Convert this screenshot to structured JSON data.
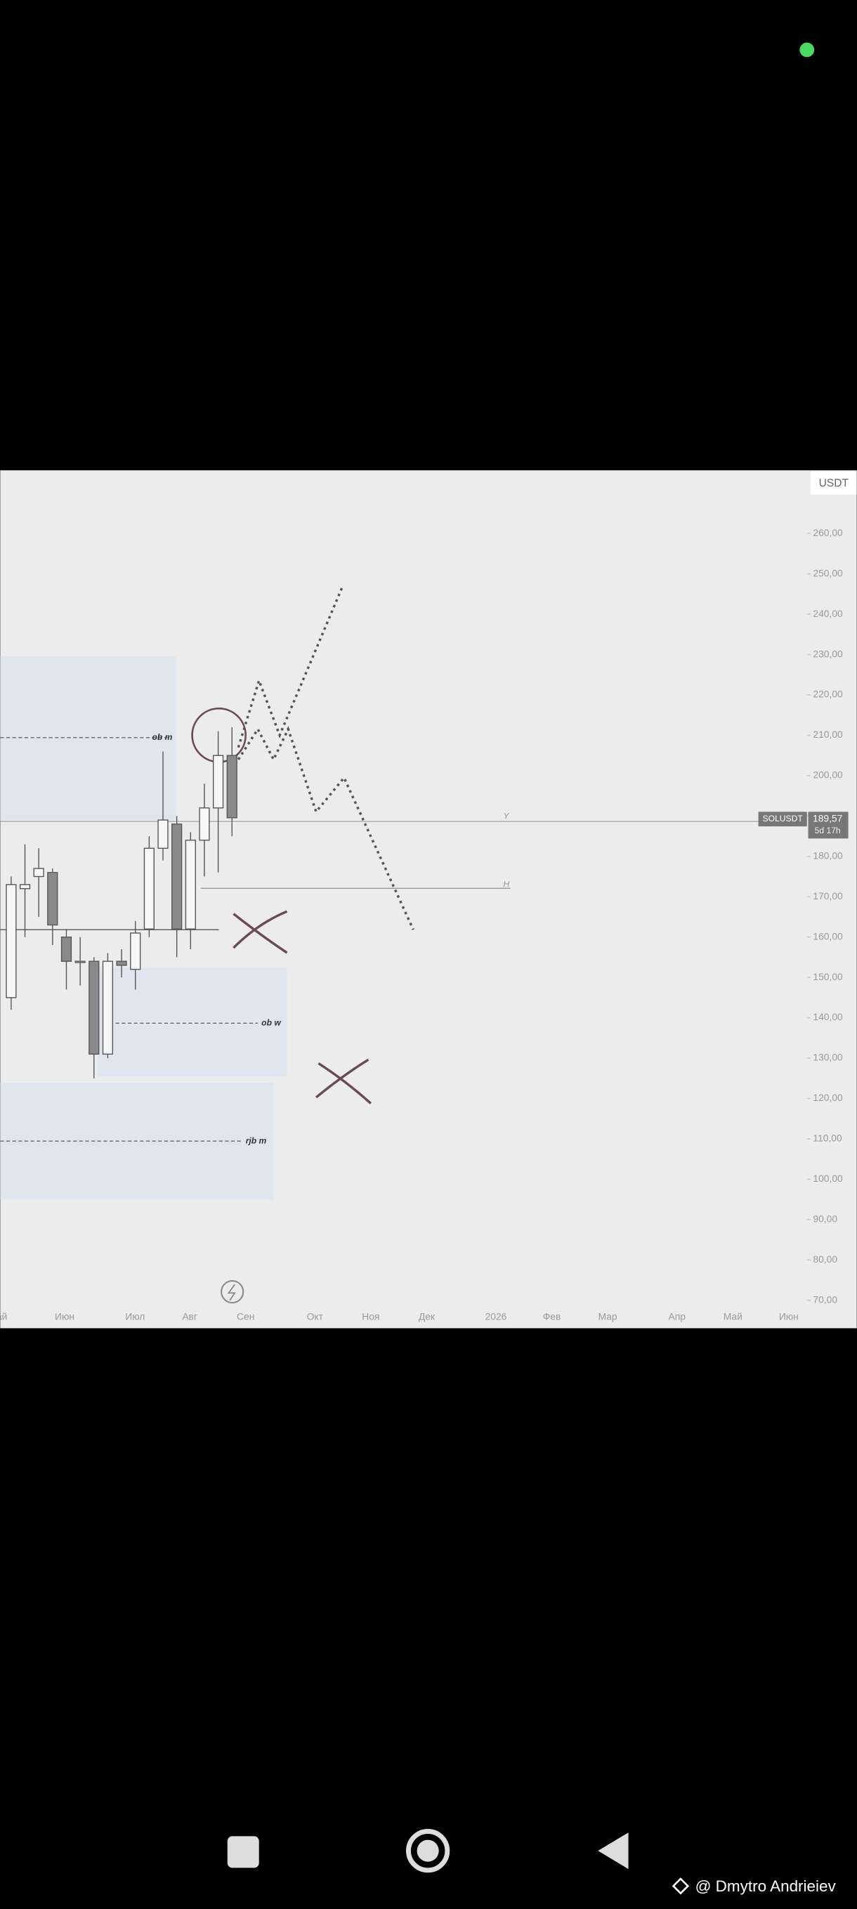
{
  "chart_data": {
    "type": "candlestick",
    "symbol": "SOLUSDT",
    "currency": "USDT",
    "price": {
      "value": 189.57,
      "label": "189,57"
    },
    "countdown": "5d 17h",
    "open": [
      145,
      172,
      175,
      176,
      160,
      154,
      154,
      131,
      154,
      152,
      162,
      182,
      188,
      162,
      184,
      192,
      205
    ],
    "high": [
      175,
      183,
      182,
      177,
      162,
      160,
      155,
      156,
      157,
      164,
      185,
      206,
      190,
      186,
      198,
      211,
      212
    ],
    "low": [
      142,
      160,
      165,
      158,
      147,
      148,
      125,
      130,
      150,
      147,
      160,
      179,
      155,
      157,
      175,
      176,
      185
    ],
    "close": [
      173,
      173,
      177,
      163,
      154,
      154,
      131,
      154,
      153,
      161,
      182,
      189,
      162,
      184,
      192,
      205,
      189.57
    ],
    "ylim": [
      70,
      260
    ],
    "yticks": [
      {
        "value": 260,
        "label": "260,00"
      },
      {
        "value": 250,
        "label": "250,00"
      },
      {
        "value": 240,
        "label": "240,00"
      },
      {
        "value": 230,
        "label": "230,00"
      },
      {
        "value": 220,
        "label": "220,00"
      },
      {
        "value": 210,
        "label": "210,00"
      },
      {
        "value": 200,
        "label": "200,00"
      },
      {
        "value": 190,
        "label": "190,00"
      },
      {
        "value": 180,
        "label": "180,00"
      },
      {
        "value": 170,
        "label": "170,00"
      },
      {
        "value": 160,
        "label": "160,00"
      },
      {
        "value": 150,
        "label": "150,00"
      },
      {
        "value": 140,
        "label": "140,00"
      },
      {
        "value": 130,
        "label": "130,00"
      },
      {
        "value": 120,
        "label": "120,00"
      },
      {
        "value": 110,
        "label": "110,00"
      },
      {
        "value": 100,
        "label": "100,00"
      },
      {
        "value": 90,
        "label": "90,00"
      },
      {
        "value": 80,
        "label": "80,00"
      },
      {
        "value": 70,
        "label": "70,00"
      }
    ],
    "x_labels": [
      "Май",
      "Июн",
      "Июл",
      "Авг",
      "Сен",
      "Окт",
      "Ноя",
      "Дек",
      "2026",
      "Фев",
      "Мар",
      "Апр",
      "Май",
      "Июн"
    ],
    "annotations": [
      "ob m",
      "ob w",
      "rjb m",
      "Y",
      "H"
    ]
  },
  "watermark": "@ Dmytro Andrieiev"
}
